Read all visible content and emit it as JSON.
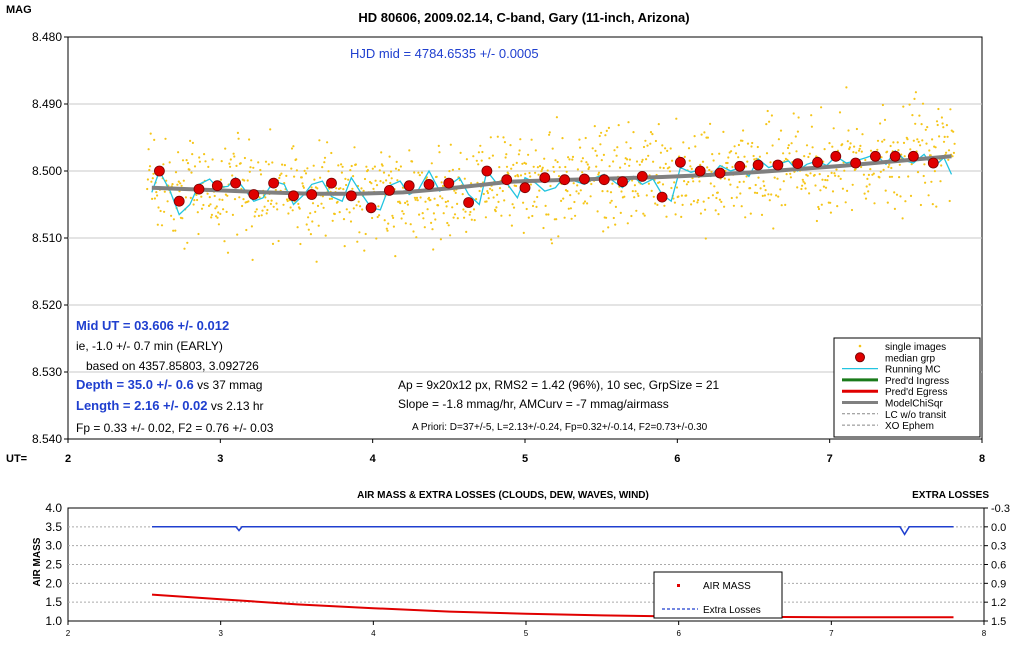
{
  "top_chart": {
    "type": "scatter",
    "title": "HD 80606, 2009.02.14, C-band, Gary (11-inch, Arizona)",
    "ylabel": "MAG",
    "xlabel_prefix": "UT=",
    "x_ticks": [
      "2",
      "3",
      "4",
      "5",
      "6",
      "7",
      "8"
    ],
    "y_ticks": [
      "8.480",
      "8.490",
      "8.500",
      "8.510",
      "8.520",
      "8.530",
      "8.540"
    ],
    "xlim": [
      2,
      8
    ],
    "ylim": [
      8.48,
      8.54
    ],
    "y_inverted": true,
    "hjd_text": "HJD mid = 4784.6535 +/- 0.0005",
    "annotations": {
      "mid_ut": "Mid UT = 03.606 +/- 0.012",
      "ie_line": "ie, -1.0 +/- 0.7 min (EARLY)",
      "based_on": "based on 4357.85803, 3.092726",
      "depth_bold": "Depth = 35.0 +/- 0.6",
      "depth_rest": " vs 37 mmag",
      "length_bold": "Length = 2.16 +/- 0.02",
      "length_rest": " vs 2.13 hr",
      "fp_line": "Fp = 0.33 +/- 0.02,  F2 = 0.76 +/- 0.03",
      "ap_line": "Ap = 9x20x12 px, RMS2 = 1.42 (96%), 10 sec, GrpSize = 21",
      "slope_line": "Slope = -1.8 mmag/hr, AMCurv = -7 mmag/airmass",
      "apriori_line": "A Priori: D=37+/-5, L=2.13+/-0.24, Fp=0.32+/-0.14, F2=0.73+/-0.30"
    },
    "legend": {
      "position": "bottom-right",
      "entries": [
        "single images",
        "median grp",
        "Running MC",
        "Pred'd Ingress",
        "Pred'd Egress",
        "ModelChiSqr",
        "LC w/o transit",
        "XO Ephem"
      ]
    },
    "colors": {
      "single": "#f5c518",
      "median_fill": "#e00000",
      "median_stroke": "#7a0000",
      "running": "#22c4e0",
      "ingress": "#1a7a1a",
      "egress": "#e00000",
      "model": "#808080",
      "lc": "#888888",
      "xo": "#999999",
      "hjd": "#1f3fcf",
      "blue_text": "#1f3fcf"
    },
    "single_images": {
      "x_start": 2.52,
      "x_end": 7.82,
      "count": 1150
    },
    "median_grp": {
      "x": [
        2.6,
        2.73,
        2.86,
        2.98,
        3.1,
        3.22,
        3.35,
        3.48,
        3.6,
        3.73,
        3.86,
        3.99,
        4.11,
        4.24,
        4.37,
        4.5,
        4.63,
        4.75,
        4.88,
        5.0,
        5.13,
        5.26,
        5.39,
        5.52,
        5.64,
        5.77,
        5.9,
        6.02,
        6.15,
        6.28,
        6.41,
        6.53,
        6.66,
        6.79,
        6.92,
        7.04,
        7.17,
        7.3,
        7.43,
        7.55,
        7.68
      ],
      "y": [
        8.5,
        8.5045,
        8.5027,
        8.5022,
        8.5018,
        8.5035,
        8.5018,
        8.5037,
        8.5035,
        8.5018,
        8.5037,
        8.5055,
        8.5029,
        8.5022,
        8.502,
        8.5018,
        8.5047,
        8.5,
        8.5013,
        8.5025,
        8.501,
        8.5013,
        8.5012,
        8.5013,
        8.5016,
        8.5008,
        8.5039,
        8.4987,
        8.5,
        8.5003,
        8.4993,
        8.4991,
        8.4991,
        8.4989,
        8.4987,
        8.4978,
        8.4988,
        8.4978,
        8.4978,
        8.4978,
        8.4988
      ]
    },
    "model_curve": {
      "x": [
        2.55,
        3.0,
        3.3,
        3.6,
        3.9,
        4.2,
        4.5,
        4.7,
        4.9,
        5.0,
        5.3,
        5.6,
        5.9,
        6.2,
        6.5,
        6.8,
        7.1,
        7.4,
        7.8
      ],
      "y": [
        8.5025,
        8.5029,
        8.5032,
        8.5034,
        8.5034,
        8.5032,
        8.5026,
        8.5021,
        8.5016,
        8.5015,
        8.5013,
        8.5011,
        8.5009,
        8.5006,
        8.5002,
        8.4997,
        8.4992,
        8.4986,
        8.4978
      ]
    },
    "running_mc": {
      "x": [
        2.55,
        2.6,
        2.67,
        2.73,
        2.8,
        2.86,
        2.93,
        2.98,
        3.05,
        3.1,
        3.16,
        3.22,
        3.28,
        3.35,
        3.42,
        3.48,
        3.55,
        3.6,
        3.67,
        3.73,
        3.8,
        3.86,
        3.93,
        3.99,
        4.05,
        4.11,
        4.18,
        4.24,
        4.3,
        4.37,
        4.44,
        4.5,
        4.57,
        4.63,
        4.7,
        4.75,
        4.82,
        4.88,
        4.95,
        5.0,
        5.07,
        5.13,
        5.2,
        5.26,
        5.33,
        5.39,
        5.46,
        5.52,
        5.58,
        5.64,
        5.71,
        5.77,
        5.84,
        5.9,
        5.96,
        6.02,
        6.09,
        6.15,
        6.22,
        6.28,
        6.35,
        6.41,
        6.47,
        6.53,
        6.6,
        6.66,
        6.73,
        6.79,
        6.85,
        6.92,
        6.98,
        7.04,
        7.11,
        7.17,
        7.24,
        7.3,
        7.37,
        7.43,
        7.5,
        7.55,
        7.62,
        7.68,
        7.75,
        7.8
      ],
      "y": [
        8.5032,
        8.5,
        8.503,
        8.5065,
        8.505,
        8.502,
        8.5012,
        8.5025,
        8.5023,
        8.501,
        8.5028,
        8.5045,
        8.504,
        8.5015,
        8.502,
        8.505,
        8.5035,
        8.502,
        8.5015,
        8.5038,
        8.5045,
        8.501,
        8.5035,
        8.5055,
        8.5058,
        8.5022,
        8.5015,
        8.5035,
        8.5028,
        8.5,
        8.503,
        8.5022,
        8.501,
        8.5035,
        8.505,
        8.5,
        8.502,
        8.5018,
        8.504,
        8.501,
        8.5018,
        8.503,
        8.5025,
        8.5008,
        8.5015,
        8.502,
        8.501,
        8.5005,
        8.5015,
        8.5025,
        8.5008,
        8.502,
        8.5012,
        8.5035,
        8.5045,
        8.4995,
        8.5002,
        8.4998,
        8.5008,
        8.4992,
        8.5,
        8.4995,
        8.5008,
        8.4982,
        8.4995,
        8.499,
        8.4985,
        8.5,
        8.499,
        8.4985,
        8.4992,
        8.4978,
        8.4988,
        8.4985,
        8.498,
        8.4975,
        8.499,
        8.497,
        8.4985,
        8.4988,
        8.4975,
        8.4995,
        8.498,
        8.5005
      ]
    }
  },
  "bottom_chart": {
    "type": "line",
    "title": "AIR MASS & EXTRA LOSSES (CLOUDS, DEW, WAVES, WIND)",
    "ylabel": "AIR MASS",
    "y2label": "EXTRA LOSSES",
    "x_ticks": [
      "2",
      "3",
      "4",
      "5",
      "6",
      "7",
      "8"
    ],
    "y_ticks": [
      "4.0",
      "3.5",
      "3.0",
      "2.5",
      "2.0",
      "1.5",
      "1.0"
    ],
    "y2_ticks": [
      "-0.3",
      "0.0",
      "0.3",
      "0.6",
      "0.9",
      "1.2",
      "1.5"
    ],
    "xlim": [
      2,
      8
    ],
    "ylim": [
      1.0,
      4.0
    ],
    "y2lim": [
      -0.3,
      1.5
    ],
    "y2_inverted": true,
    "legend": {
      "position": "center-right",
      "entries": [
        "AIR MASS",
        "Extra Losses"
      ]
    },
    "colors": {
      "air_mass": "#e00000",
      "extra": "#1f3fcf"
    },
    "air_mass": {
      "x": [
        2.55,
        3.0,
        3.5,
        4.0,
        4.5,
        5.0,
        5.5,
        6.0,
        6.5,
        7.0,
        7.5,
        7.8
      ],
      "y": [
        1.7,
        1.58,
        1.44,
        1.34,
        1.25,
        1.19,
        1.15,
        1.12,
        1.11,
        1.1,
        1.1,
        1.1
      ]
    },
    "extra_losses": {
      "x": [
        2.55,
        3.1,
        3.12,
        3.14,
        4.0,
        5.0,
        6.0,
        7.0,
        7.45,
        7.48,
        7.51,
        7.8
      ],
      "y": [
        0.0,
        0.0,
        0.06,
        0.0,
        0.0,
        0.0,
        0.0,
        0.0,
        0.0,
        0.12,
        0.0,
        0.0
      ]
    }
  }
}
